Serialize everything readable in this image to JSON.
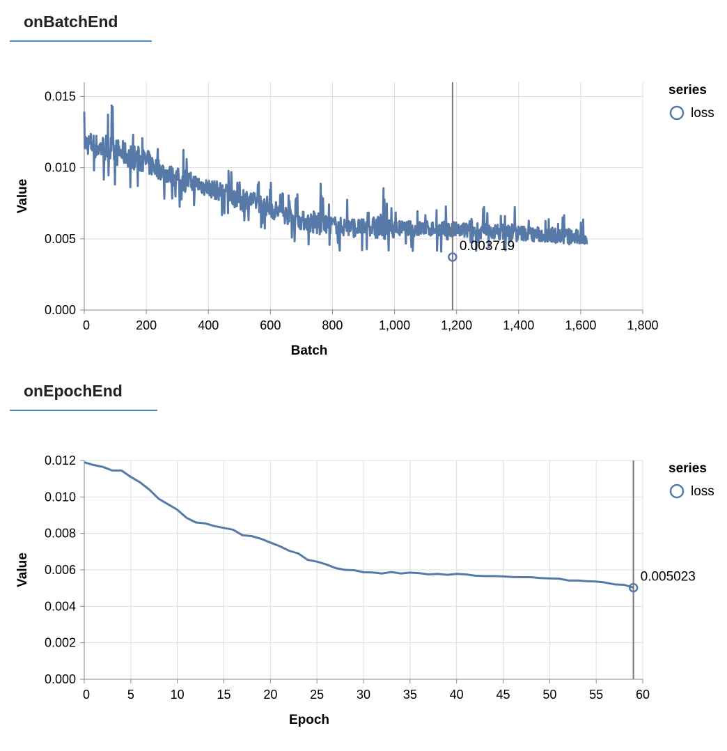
{
  "panels": [
    {
      "tab_label": "onBatchEnd",
      "chart_data": {
        "type": "line",
        "xlabel": "Batch",
        "ylabel": "Value",
        "xlim": [
          0,
          1800
        ],
        "ylim": [
          0,
          0.016
        ],
        "x_ticks": [
          "0",
          "200",
          "400",
          "600",
          "800",
          "1,000",
          "1,200",
          "1,400",
          "1,600",
          "1,800"
        ],
        "y_ticks": [
          "0.000",
          "0.005",
          "0.010",
          "0.015"
        ],
        "grid": true,
        "legend": {
          "title": "series",
          "position": "right",
          "entries": [
            "loss"
          ]
        },
        "series": [
          {
            "name": "loss",
            "color": "#5779a8",
            "x": [
              0,
              25,
              50,
              75,
              100,
              125,
              150,
              175,
              200,
              225,
              250,
              275,
              300,
              325,
              350,
              375,
              400,
              425,
              450,
              475,
              500,
              525,
              550,
              575,
              600,
              625,
              650,
              675,
              700,
              725,
              750,
              775,
              800,
              825,
              850,
              875,
              900,
              925,
              950,
              975,
              1000,
              1025,
              1050,
              1075,
              1100,
              1125,
              1150,
              1175,
              1200,
              1225,
              1250,
              1275,
              1300,
              1325,
              1350,
              1375,
              1400,
              1425,
              1450,
              1475,
              1500,
              1525,
              1550,
              1575,
              1600,
              1620
            ],
            "y_mean": [
              0.0118,
              0.0116,
              0.0114,
              0.0113,
              0.0111,
              0.011,
              0.0108,
              0.0106,
              0.0104,
              0.0101,
              0.0098,
              0.0095,
              0.0093,
              0.0091,
              0.0089,
              0.0088,
              0.0086,
              0.0084,
              0.0083,
              0.0081,
              0.0079,
              0.0078,
              0.0076,
              0.0074,
              0.0072,
              0.0069,
              0.0067,
              0.0065,
              0.0063,
              0.0062,
              0.0061,
              0.006,
              0.006,
              0.0059,
              0.0058,
              0.0058,
              0.0058,
              0.0058,
              0.0058,
              0.0057,
              0.0057,
              0.0057,
              0.0057,
              0.0057,
              0.0057,
              0.0057,
              0.0056,
              0.0056,
              0.0056,
              0.0056,
              0.0055,
              0.0055,
              0.0055,
              0.0055,
              0.0055,
              0.0054,
              0.0054,
              0.0054,
              0.0053,
              0.0053,
              0.0053,
              0.0052,
              0.0052,
              0.0051,
              0.0051,
              0.005
            ],
            "y_min": [
              0.0098,
              0.0092,
              0.0088,
              0.0082,
              0.0086,
              0.0085,
              0.0084,
              0.0078,
              0.0082,
              0.0078,
              0.0076,
              0.0072,
              0.0071,
              0.0068,
              0.0067,
              0.0066,
              0.0066,
              0.0064,
              0.0063,
              0.0062,
              0.0061,
              0.006,
              0.0058,
              0.0056,
              0.0044,
              0.0048,
              0.0046,
              0.0046,
              0.0044,
              0.0043,
              0.0043,
              0.0042,
              0.0042,
              0.0041,
              0.0041,
              0.0041,
              0.0041,
              0.004,
              0.004,
              0.004,
              0.004,
              0.004,
              0.004,
              0.004,
              0.0039,
              0.0039,
              0.0039,
              0.0039,
              0.0039,
              0.0038,
              0.0038,
              0.0038,
              0.0038,
              0.0037,
              0.0037,
              0.0037,
              0.0037,
              0.0036,
              0.0036,
              0.0035,
              0.0032,
              0.0035,
              0.0035,
              0.0034,
              0.0034,
              0.0034
            ],
            "y_max": [
              0.014,
              0.0145,
              0.0136,
              0.0148,
              0.0142,
              0.0135,
              0.0132,
              0.013,
              0.0132,
              0.0125,
              0.0115,
              0.0112,
              0.011,
              0.0115,
              0.0108,
              0.0106,
              0.0104,
              0.0102,
              0.01,
              0.0098,
              0.0125,
              0.01,
              0.0094,
              0.0092,
              0.009,
              0.0086,
              0.0084,
              0.0082,
              0.0083,
              0.008,
              0.0105,
              0.0078,
              0.0077,
              0.0076,
              0.0083,
              0.0079,
              0.0074,
              0.0074,
              0.0104,
              0.0075,
              0.0074,
              0.0073,
              0.0072,
              0.0072,
              0.0072,
              0.0071,
              0.0072,
              0.008,
              0.0071,
              0.007,
              0.0095,
              0.0078,
              0.0069,
              0.0069,
              0.0068,
              0.0083,
              0.0068,
              0.0067,
              0.0067,
              0.0066,
              0.0066,
              0.0065,
              0.0072,
              0.0065,
              0.0066,
              0.0064
            ]
          }
        ],
        "annotation": {
          "x": 1187,
          "y": 0.003719,
          "label": "0.003719"
        }
      }
    },
    {
      "tab_label": "onEpochEnd",
      "chart_data": {
        "type": "line",
        "xlabel": "Epoch",
        "ylabel": "Value",
        "xlim": [
          0,
          60
        ],
        "ylim": [
          0,
          0.012
        ],
        "x_ticks": [
          "0",
          "5",
          "10",
          "15",
          "20",
          "25",
          "30",
          "35",
          "40",
          "45",
          "50",
          "55",
          "60"
        ],
        "y_ticks": [
          "0.000",
          "0.002",
          "0.004",
          "0.006",
          "0.008",
          "0.010",
          "0.012"
        ],
        "grid": true,
        "legend": {
          "title": "series",
          "position": "right",
          "entries": [
            "loss"
          ]
        },
        "series": [
          {
            "name": "loss",
            "color": "#5779a8",
            "x": [
              0,
              1,
              2,
              3,
              4,
              5,
              6,
              7,
              8,
              9,
              10,
              11,
              12,
              13,
              14,
              15,
              16,
              17,
              18,
              19,
              20,
              21,
              22,
              23,
              24,
              25,
              26,
              27,
              28,
              29,
              30,
              31,
              32,
              33,
              34,
              35,
              36,
              37,
              38,
              39,
              40,
              41,
              42,
              43,
              44,
              45,
              46,
              47,
              48,
              49,
              50,
              51,
              52,
              53,
              54,
              55,
              56,
              57,
              58,
              59
            ],
            "y": [
              0.0119,
              0.01175,
              0.01165,
              0.01145,
              0.01145,
              0.0111,
              0.0108,
              0.0104,
              0.0099,
              0.0096,
              0.0093,
              0.00885,
              0.0086,
              0.00855,
              0.0084,
              0.0083,
              0.0082,
              0.0079,
              0.00785,
              0.0077,
              0.0075,
              0.0073,
              0.00705,
              0.0069,
              0.00655,
              0.00645,
              0.0063,
              0.0061,
              0.006,
              0.00598,
              0.00587,
              0.00586,
              0.0058,
              0.00588,
              0.0058,
              0.00585,
              0.00582,
              0.00575,
              0.00578,
              0.00573,
              0.00578,
              0.00575,
              0.00568,
              0.00566,
              0.00566,
              0.00564,
              0.00561,
              0.0056,
              0.0056,
              0.00555,
              0.00553,
              0.00552,
              0.00542,
              0.00542,
              0.00538,
              0.00536,
              0.0053,
              0.0052,
              0.00518,
              0.005023
            ]
          }
        ],
        "annotation": {
          "x": 59,
          "y": 0.005023,
          "label": "0.005023"
        }
      }
    }
  ]
}
